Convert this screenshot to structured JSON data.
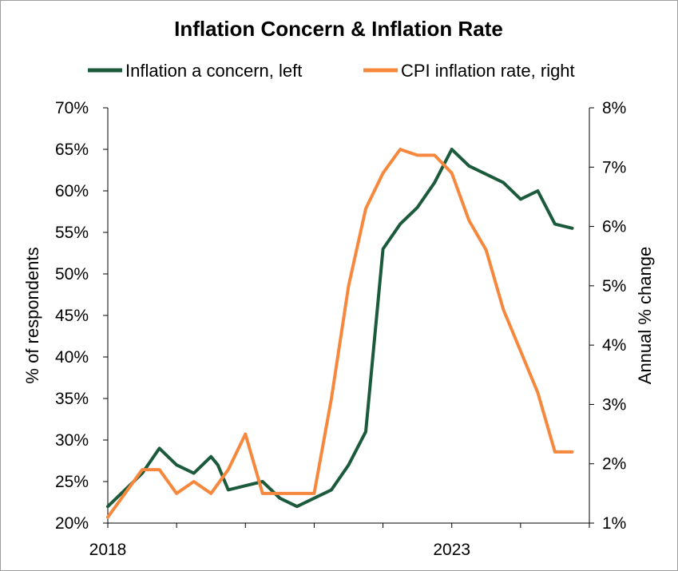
{
  "chart_data": {
    "type": "line",
    "title": "Inflation Concern & Inflation Rate",
    "ylabel": "% of respondents",
    "y2label": "Annual % change",
    "xlabel": "",
    "x_tick_labels": [
      "2018",
      "2023"
    ],
    "ylim": [
      20,
      70
    ],
    "y2lim": [
      1,
      8
    ],
    "y_ticks": [
      "20%",
      "25%",
      "30%",
      "35%",
      "40%",
      "45%",
      "50%",
      "55%",
      "60%",
      "65%",
      "70%"
    ],
    "y2_ticks": [
      "1%",
      "2%",
      "3%",
      "4%",
      "5%",
      "6%",
      "7%",
      "8%"
    ],
    "legend_position": "top",
    "grid": false,
    "series": [
      {
        "name": "Inflation a concern, left",
        "axis": "left",
        "color": "#1c5a3c",
        "x": [
          2018.0,
          2018.25,
          2018.5,
          2018.75,
          2019.0,
          2019.25,
          2019.5,
          2019.6,
          2019.75,
          2020.0,
          2020.25,
          2020.5,
          2020.75,
          2021.0,
          2021.25,
          2021.5,
          2021.75,
          2022.0,
          2022.25,
          2022.5,
          2022.75,
          2023.0,
          2023.25,
          2023.5,
          2023.75,
          2024.0,
          2024.25,
          2024.5,
          2024.75
        ],
        "values": [
          22.0,
          24.0,
          26.0,
          29.0,
          27.0,
          26.0,
          28.0,
          27.0,
          24.0,
          24.5,
          25.0,
          23.0,
          22.0,
          23.0,
          24.0,
          27.0,
          31.0,
          53.0,
          56.0,
          58.0,
          61.0,
          65.0,
          63.0,
          62.0,
          61.0,
          59.0,
          60.0,
          56.0,
          55.5
        ]
      },
      {
        "name": "CPI inflation rate, right",
        "axis": "right",
        "color": "#f6883e",
        "x": [
          2018.0,
          2018.25,
          2018.5,
          2018.75,
          2019.0,
          2019.25,
          2019.5,
          2019.75,
          2020.0,
          2020.25,
          2020.5,
          2020.75,
          2021.0,
          2021.25,
          2021.5,
          2021.75,
          2022.0,
          2022.25,
          2022.5,
          2022.75,
          2023.0,
          2023.25,
          2023.5,
          2023.75,
          2024.0,
          2024.25,
          2024.5,
          2024.75
        ],
        "values": [
          1.1,
          1.5,
          1.9,
          1.9,
          1.5,
          1.7,
          1.5,
          1.9,
          2.5,
          1.5,
          1.5,
          1.5,
          1.5,
          3.1,
          5.0,
          6.3,
          6.9,
          7.3,
          7.2,
          7.2,
          6.9,
          6.1,
          5.6,
          4.6,
          3.9,
          3.2,
          2.2,
          2.2
        ]
      }
    ]
  }
}
